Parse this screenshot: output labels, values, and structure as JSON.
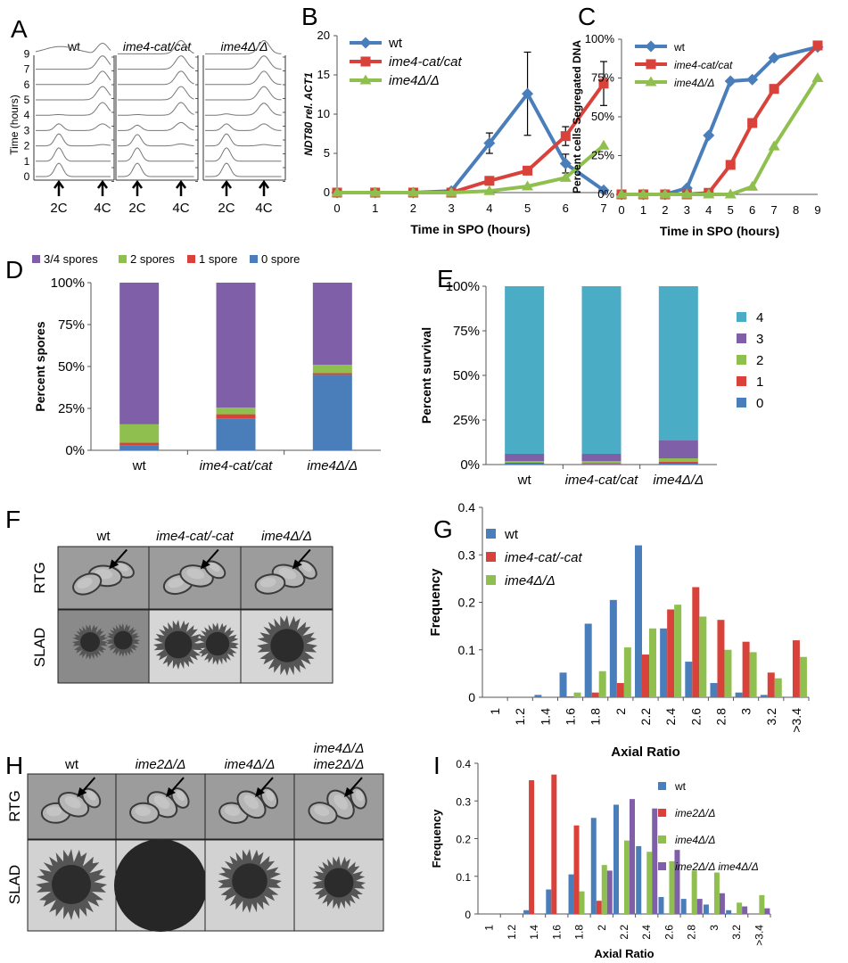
{
  "panels": {
    "A": "A",
    "B": "B",
    "C": "C",
    "D": "D",
    "E": "E",
    "F": "F",
    "G": "G",
    "H": "H",
    "I": "I"
  },
  "panel_A": {
    "strains": [
      "wt",
      "ime4-cat/cat",
      "ime4Δ/Δ"
    ],
    "ylabel": "Time (hours)",
    "times": [
      "0",
      "1",
      "2",
      "3",
      "4",
      "5",
      "6",
      "7",
      "9"
    ],
    "markers": [
      "2C",
      "4C"
    ]
  },
  "panel_F": {
    "strains": [
      "wt",
      "ime4-cat/-cat",
      "ime4Δ/Δ"
    ],
    "rows": [
      "RTG",
      "SLAD"
    ]
  },
  "panel_H": {
    "strains": [
      "wt",
      "ime2Δ/Δ",
      "ime4Δ/Δ",
      "ime4Δ/Δ",
      "ime2Δ/Δ"
    ],
    "rows": [
      "RTG",
      "SLAD"
    ]
  },
  "chart_data": [
    {
      "id": "B",
      "type": "line",
      "x": [
        0,
        1,
        2,
        3,
        4,
        5,
        6,
        7
      ],
      "xlabel": "Time in SPO (hours)",
      "ylabel": "NDT80 rel. ACT1",
      "ylim": [
        0,
        20
      ],
      "yticks": [
        "0",
        "5",
        "10",
        "15",
        "20"
      ],
      "series": [
        {
          "name": "wt",
          "color": "#4a7ebb",
          "values": [
            0,
            0,
            0,
            0.2,
            6.3,
            12.6,
            3.7,
            0.3
          ],
          "err": [
            0,
            0,
            0,
            0,
            1.3,
            5.3,
            1.2,
            0
          ]
        },
        {
          "name": "ime4-cat/cat",
          "color": "#d9423b",
          "values": [
            0,
            0,
            0,
            0,
            1.5,
            2.8,
            7.2,
            13.9
          ],
          "err": [
            0,
            0,
            0,
            0,
            0,
            0,
            1.2,
            2.8
          ]
        },
        {
          "name": "ime4Δ/Δ",
          "color": "#8fc04f",
          "values": [
            0,
            0,
            0,
            0,
            0.2,
            0.8,
            1.9,
            6.0
          ],
          "err": [
            0,
            0,
            0,
            0,
            0,
            0,
            0,
            0
          ]
        }
      ],
      "legend": "top-left"
    },
    {
      "id": "C",
      "type": "line",
      "x": [
        0,
        1,
        2,
        3,
        4,
        5,
        6,
        7,
        9
      ],
      "xticks": [
        "0",
        "1",
        "2",
        "3",
        "4",
        "5",
        "6",
        "7",
        "8",
        "9"
      ],
      "xlabel": "Time in SPO (hours)",
      "ylabel": "Percent cells Segregated DNA",
      "ylim": [
        0,
        100
      ],
      "yticks": [
        "0%",
        "25%",
        "50%",
        "75%",
        "100%"
      ],
      "series": [
        {
          "name": "wt",
          "color": "#4a7ebb",
          "values": [
            0,
            0,
            0,
            4,
            38,
            73,
            74,
            88,
            95
          ]
        },
        {
          "name": "ime4-cat/cat",
          "color": "#d9423b",
          "values": [
            0,
            0,
            0,
            0,
            1,
            19,
            46,
            68,
            96
          ]
        },
        {
          "name": "ime4Δ/Δ",
          "color": "#8fc04f",
          "values": [
            0,
            0,
            0,
            0,
            0,
            0,
            5,
            31,
            75
          ]
        }
      ],
      "legend": "top-left"
    },
    {
      "id": "D",
      "type": "bar",
      "stacked": true,
      "categories": [
        "wt",
        "ime4-cat/cat",
        "ime4Δ/Δ"
      ],
      "ylabel": "Percent spores",
      "ylim": [
        0,
        100
      ],
      "yticks": [
        "0%",
        "25%",
        "50%",
        "75%",
        "100%"
      ],
      "series": [
        {
          "name": "0 spore",
          "color": "#4a7ebb",
          "values": [
            3,
            19,
            45
          ]
        },
        {
          "name": "1 spore",
          "color": "#d9423b",
          "values": [
            1.5,
            2.5,
            1
          ]
        },
        {
          "name": "2 spores",
          "color": "#8fc04f",
          "values": [
            11,
            4,
            5
          ]
        },
        {
          "name": "3/4 spores",
          "color": "#7f5fa8",
          "values": [
            84.5,
            74.5,
            49
          ]
        }
      ],
      "legend_order": [
        "3/4 spores",
        "2 spores",
        "1 spore",
        "0 spore"
      ],
      "legend": "top"
    },
    {
      "id": "E",
      "type": "bar",
      "stacked": true,
      "categories": [
        "wt",
        "ime4-cat/cat",
        "ime4Δ/Δ"
      ],
      "ylabel": "Percent survival",
      "ylim": [
        0,
        100
      ],
      "yticks": [
        "0%",
        "25%",
        "50%",
        "75%",
        "100%"
      ],
      "series": [
        {
          "name": "0",
          "color": "#4a7ebb",
          "values": [
            0.5,
            0.3,
            0.5
          ]
        },
        {
          "name": "1",
          "color": "#d9423b",
          "values": [
            0.5,
            0.5,
            1
          ]
        },
        {
          "name": "2",
          "color": "#8fc04f",
          "values": [
            1,
            1.2,
            2
          ]
        },
        {
          "name": "3",
          "color": "#7f5fa8",
          "values": [
            4,
            4,
            10
          ]
        },
        {
          "name": "4",
          "color": "#4bacc6",
          "values": [
            94,
            94,
            86.5
          ]
        }
      ],
      "legend_order": [
        "4",
        "3",
        "2",
        "1",
        "0"
      ],
      "legend": "right"
    },
    {
      "id": "G",
      "type": "bar",
      "categories": [
        "1",
        "1.2",
        "1.4",
        "1.6",
        "1.8",
        "2",
        "2.2",
        "2.4",
        "2.6",
        "2.8",
        "3",
        "3.2",
        ">3.4"
      ],
      "xlabel": "Axial Ratio",
      "ylabel": "Frequency",
      "ylim": [
        0,
        0.4
      ],
      "yticks": [
        "0",
        "0.1",
        "0.2",
        "0.3",
        "0.4"
      ],
      "series": [
        {
          "name": "wt",
          "color": "#4a7ebb",
          "values": [
            0,
            0,
            0.005,
            0.052,
            0.155,
            0.205,
            0.32,
            0.145,
            0.075,
            0.03,
            0.01,
            0.005,
            0
          ]
        },
        {
          "name": "ime4-cat/-cat",
          "color": "#d9423b",
          "values": [
            0,
            0,
            0,
            0.002,
            0.01,
            0.03,
            0.09,
            0.185,
            0.232,
            0.163,
            0.117,
            0.052,
            0.12
          ]
        },
        {
          "name": "ime4Δ/Δ",
          "color": "#8fc04f",
          "values": [
            0,
            0,
            0,
            0.01,
            0.055,
            0.105,
            0.145,
            0.195,
            0.17,
            0.1,
            0.095,
            0.04,
            0.085
          ]
        }
      ],
      "legend": "top-left"
    },
    {
      "id": "I",
      "type": "bar",
      "categories": [
        "1",
        "1.2",
        "1.4",
        "1.6",
        "1.8",
        "2",
        "2.2",
        "2.4",
        "2.6",
        "2.8",
        "3",
        "3.2",
        ">3.4"
      ],
      "xlabel": "Axial Ratio",
      "ylabel": "Frequency",
      "ylim": [
        0,
        0.4
      ],
      "yticks": [
        "0",
        "0.1",
        "0.2",
        "0.3",
        "0.4"
      ],
      "series": [
        {
          "name": "wt",
          "color": "#4a7ebb",
          "values": [
            0,
            0,
            0.01,
            0.065,
            0.105,
            0.255,
            0.29,
            0.18,
            0.045,
            0.04,
            0.025,
            0.01,
            0
          ]
        },
        {
          "name": "ime2Δ/Δ",
          "color": "#d9423b",
          "values": [
            0,
            0,
            0.355,
            0.37,
            0.235,
            0.035,
            0,
            0,
            0,
            0,
            0,
            0,
            0
          ]
        },
        {
          "name": "ime4Δ/Δ",
          "color": "#8fc04f",
          "values": [
            0,
            0,
            0,
            0,
            0.06,
            0.13,
            0.195,
            0.165,
            0.14,
            0.115,
            0.11,
            0.03,
            0.05
          ]
        },
        {
          "name": "ime2Δ/Δ ime4Δ/Δ",
          "color": "#7f5fa8",
          "values": [
            0,
            0,
            0,
            0,
            0,
            0.115,
            0.305,
            0.28,
            0.17,
            0.04,
            0.055,
            0.02,
            0.015
          ]
        }
      ],
      "legend": "top-right"
    }
  ]
}
